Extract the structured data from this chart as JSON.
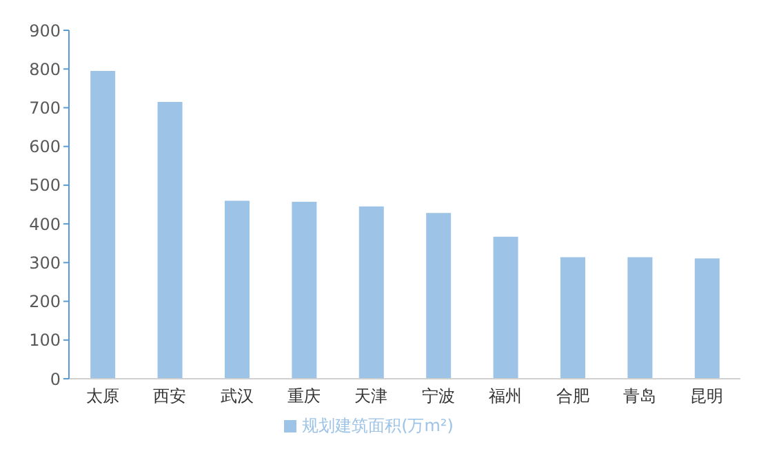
{
  "chart_data": {
    "type": "bar",
    "categories": [
      "太原",
      "西安",
      "武汉",
      "重庆",
      "天津",
      "宁波",
      "福州",
      "合肥",
      "青岛",
      "昆明"
    ],
    "series": [
      {
        "name": "规划建筑面积(万m²)",
        "color": "#9dc3e6",
        "values": [
          795,
          715,
          460,
          457,
          445,
          428,
          367,
          314,
          314,
          311
        ]
      }
    ],
    "ylim": [
      0,
      900
    ],
    "yticks": [
      0,
      100,
      200,
      300,
      400,
      500,
      600,
      700,
      800,
      900
    ],
    "grid": false,
    "legend": "bottom"
  }
}
